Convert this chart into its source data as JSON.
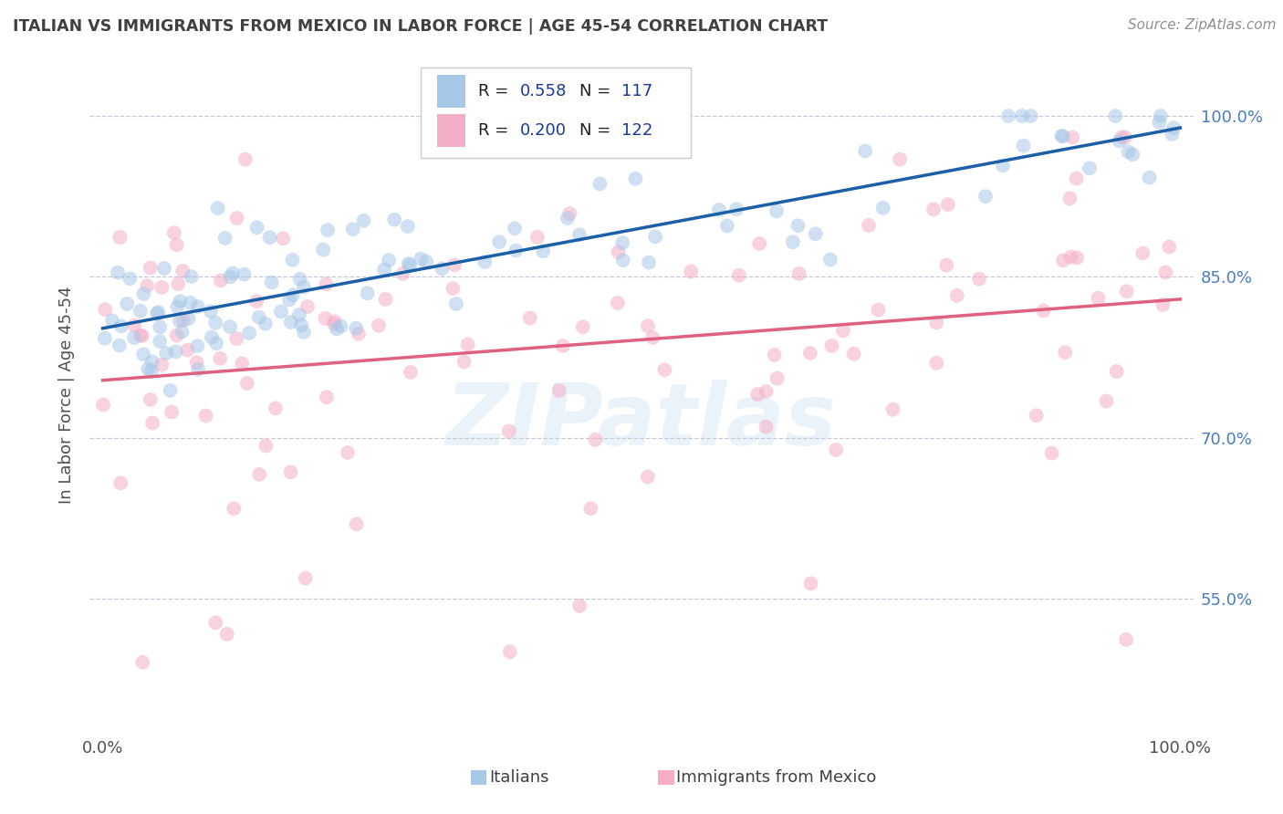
{
  "title": "ITALIAN VS IMMIGRANTS FROM MEXICO IN LABOR FORCE | AGE 45-54 CORRELATION CHART",
  "source": "Source: ZipAtlas.com",
  "ylabel": "In Labor Force | Age 45-54",
  "blue_R": 0.558,
  "blue_N": 117,
  "pink_R": 0.2,
  "pink_N": 122,
  "blue_color": "#a8c8e8",
  "pink_color": "#f5aec8",
  "blue_line_color": "#1a5fa8",
  "pink_line_color": "#e06080",
  "legend_blue_label": "Italians",
  "legend_pink_label": "Immigrants from Mexico",
  "background_color": "#ffffff",
  "grid_color": "#c8c8d8",
  "title_color": "#404040",
  "source_color": "#909090",
  "watermark": "ZIPatlas",
  "ytick_color": "#4a7cc0",
  "axis_label_color": "#505050",
  "legend_R_color": "#1a3a9a",
  "legend_N_color": "#1a3a9a"
}
